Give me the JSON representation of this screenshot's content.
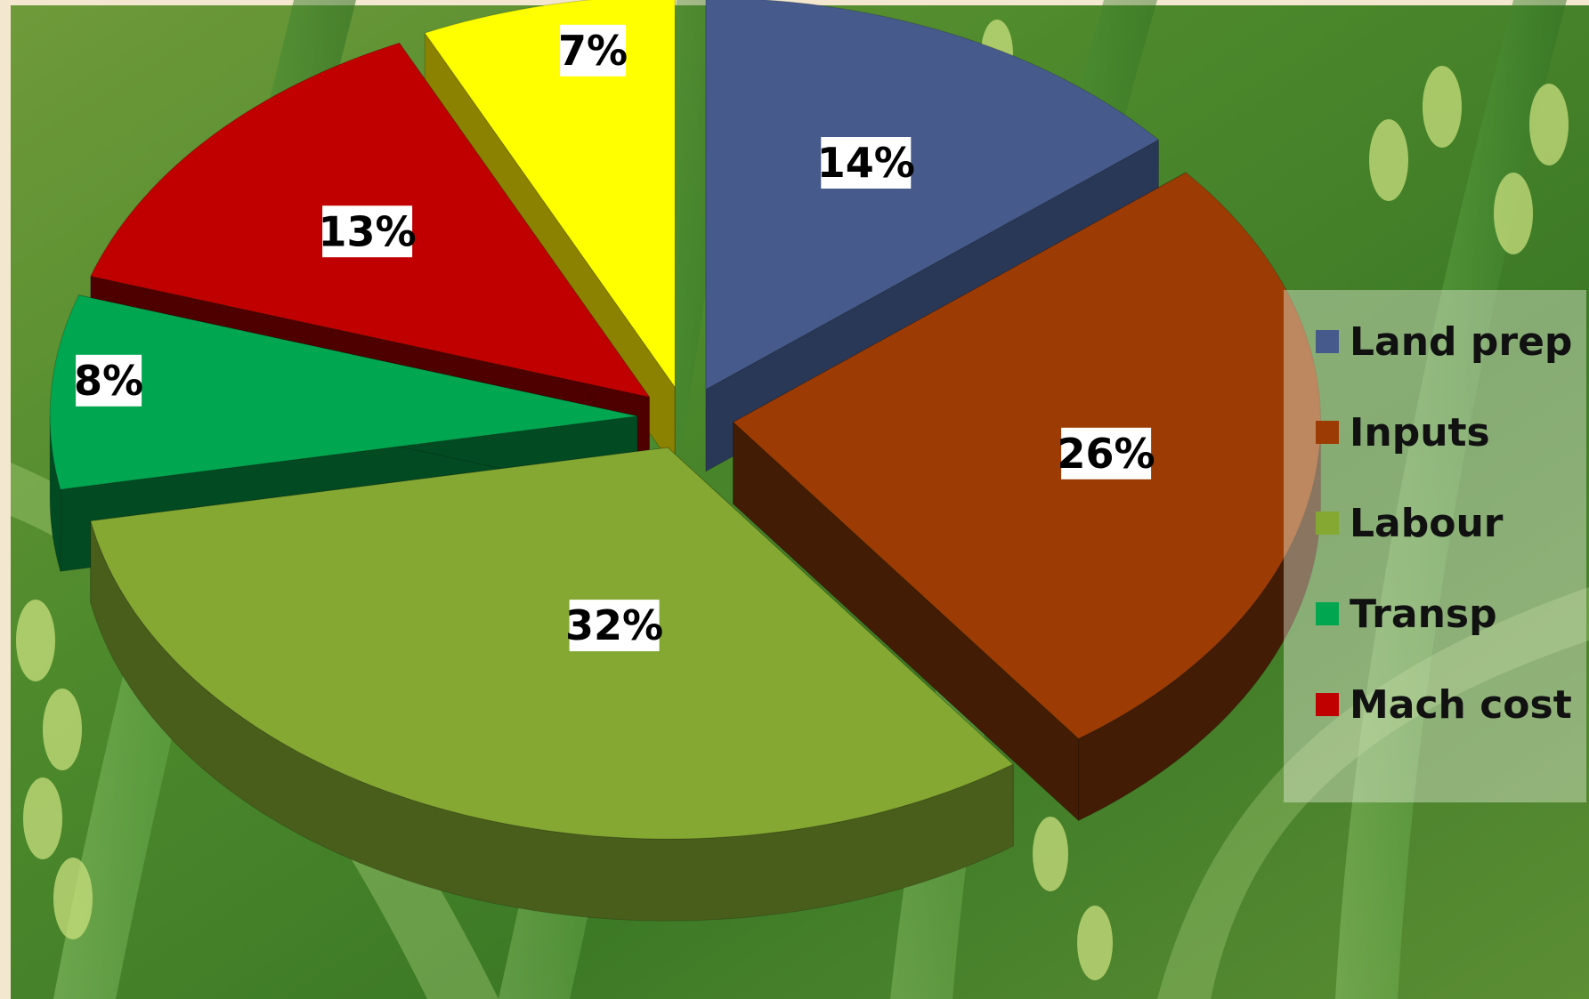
{
  "chart_data": {
    "type": "pie",
    "title": "",
    "categories": [
      "Land prep",
      "Inputs",
      "Labour",
      "Transp",
      "Mach cost",
      ""
    ],
    "values": [
      14,
      26,
      32,
      8,
      13,
      7
    ],
    "labels": [
      "14%",
      "26%",
      "32%",
      "8%",
      "13%",
      "7%"
    ],
    "colors": [
      "#465a8c",
      "#9c3c04",
      "#84a832",
      "#00a650",
      "#c00000",
      "#ffff00"
    ],
    "side_colors": [
      "#2a3858",
      "#421c04",
      "#4a5e1c",
      "#024a22",
      "#4e0000",
      "#8a8200"
    ],
    "style": "3d-exploded",
    "legend": {
      "position": "right",
      "entries": [
        "Land prep",
        "Inputs",
        "Labour",
        "Transp",
        "Mach cost"
      ]
    }
  },
  "background": "rice-field-photo"
}
